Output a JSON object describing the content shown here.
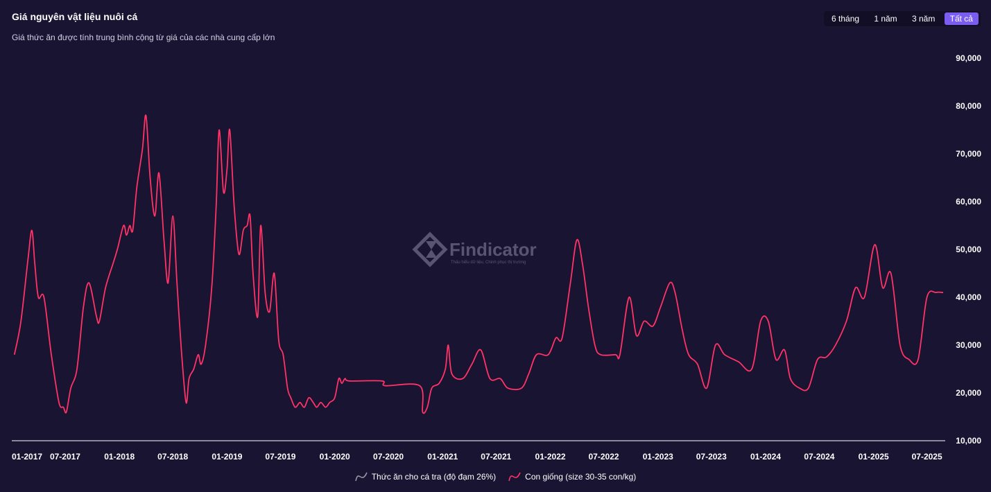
{
  "header": {
    "title": "Giá nguyên vật liệu nuôi cá",
    "subtitle": "Giá thức ăn được tính trung bình cộng từ giá của các nhà cung cấp lớn"
  },
  "range_tabs": [
    {
      "label": "6 tháng",
      "active": false
    },
    {
      "label": "1 năm",
      "active": false
    },
    {
      "label": "3 năm",
      "active": false
    },
    {
      "label": "Tất cả",
      "active": true
    }
  ],
  "watermark": {
    "name": "Findicator",
    "tagline": "Thấu hiểu dữ liệu, Chinh phục thị trường"
  },
  "colors": {
    "background": "#1a1433",
    "series_line": "#ff3366",
    "inactive_legend": "#9a97a8",
    "active_tab": "#7b5cf0"
  },
  "chart_data": {
    "type": "line",
    "title": "Giá nguyên vật liệu nuôi cá",
    "subtitle": "Giá thức ăn được tính trung bình cộng từ giá của các nhà cung cấp lớn",
    "ylim": [
      10000,
      90000
    ],
    "y_ticks": [
      {
        "value": 10000,
        "label": "10,000"
      },
      {
        "value": 20000,
        "label": "20,000"
      },
      {
        "value": 30000,
        "label": "30,000"
      },
      {
        "value": 40000,
        "label": "40,000"
      },
      {
        "value": 50000,
        "label": "50,000"
      },
      {
        "value": 60000,
        "label": "60,000"
      },
      {
        "value": 70000,
        "label": "70,000"
      },
      {
        "value": 80000,
        "label": "80,000"
      },
      {
        "value": 90000,
        "label": "90,000"
      }
    ],
    "x_range": [
      "2017-01",
      "2025-09"
    ],
    "x_ticks": [
      "01-2017",
      "07-2017",
      "01-2018",
      "07-2018",
      "01-2019",
      "07-2019",
      "01-2020",
      "07-2020",
      "01-2021",
      "07-2021",
      "01-2022",
      "07-2022",
      "01-2023",
      "07-2023",
      "01-2024",
      "07-2024",
      "01-2025",
      "07-2025"
    ],
    "legend_position": "bottom",
    "grid": false,
    "series": [
      {
        "name": "Thức ăn cho cá tra (độ đạm 26%)",
        "visible": false,
        "color": "#9a97a8",
        "points": []
      },
      {
        "name": "Con giống (size 30-35 con/kg)",
        "visible": true,
        "color": "#ff3366",
        "points": [
          [
            "2017-01-10",
            28000
          ],
          [
            "2017-02-01",
            35000
          ],
          [
            "2017-02-25",
            48000
          ],
          [
            "2017-03-10",
            54000
          ],
          [
            "2017-03-20",
            47000
          ],
          [
            "2017-04-01",
            40000
          ],
          [
            "2017-04-20",
            40000
          ],
          [
            "2017-05-15",
            28000
          ],
          [
            "2017-06-10",
            18000
          ],
          [
            "2017-06-25",
            17000
          ],
          [
            "2017-07-05",
            16000
          ],
          [
            "2017-07-20",
            21000
          ],
          [
            "2017-08-10",
            25000
          ],
          [
            "2017-09-01",
            38000
          ],
          [
            "2017-09-20",
            43000
          ],
          [
            "2017-10-15",
            36000
          ],
          [
            "2017-10-25",
            35000
          ],
          [
            "2017-11-15",
            42000
          ],
          [
            "2017-12-10",
            47000
          ],
          [
            "2017-12-25",
            50000
          ],
          [
            "2018-01-15",
            55000
          ],
          [
            "2018-01-25",
            53000
          ],
          [
            "2018-02-05",
            55000
          ],
          [
            "2018-02-15",
            54000
          ],
          [
            "2018-03-01",
            63000
          ],
          [
            "2018-03-20",
            71000
          ],
          [
            "2018-04-01",
            78000
          ],
          [
            "2018-04-15",
            65000
          ],
          [
            "2018-05-01",
            57000
          ],
          [
            "2018-05-15",
            66000
          ],
          [
            "2018-06-01",
            52000
          ],
          [
            "2018-06-15",
            43000
          ],
          [
            "2018-07-01",
            57000
          ],
          [
            "2018-07-15",
            43000
          ],
          [
            "2018-07-30",
            29000
          ],
          [
            "2018-08-15",
            18000
          ],
          [
            "2018-08-25",
            23000
          ],
          [
            "2018-09-10",
            25000
          ],
          [
            "2018-09-25",
            28000
          ],
          [
            "2018-10-05",
            26000
          ],
          [
            "2018-10-20",
            30000
          ],
          [
            "2018-11-10",
            42000
          ],
          [
            "2018-11-25",
            59000
          ],
          [
            "2018-12-05",
            75000
          ],
          [
            "2018-12-20",
            62000
          ],
          [
            "2019-01-01",
            67000
          ],
          [
            "2019-01-10",
            75000
          ],
          [
            "2019-01-25",
            59000
          ],
          [
            "2019-02-10",
            49000
          ],
          [
            "2019-02-25",
            54000
          ],
          [
            "2019-03-10",
            55000
          ],
          [
            "2019-03-20",
            57000
          ],
          [
            "2019-03-30",
            45000
          ],
          [
            "2019-04-15",
            36000
          ],
          [
            "2019-04-25",
            55000
          ],
          [
            "2019-05-10",
            41000
          ],
          [
            "2019-05-25",
            37000
          ],
          [
            "2019-06-10",
            45000
          ],
          [
            "2019-06-25",
            31000
          ],
          [
            "2019-07-10",
            28000
          ],
          [
            "2019-07-25",
            21000
          ],
          [
            "2019-08-05",
            19000
          ],
          [
            "2019-08-20",
            17000
          ],
          [
            "2019-09-05",
            18000
          ],
          [
            "2019-09-20",
            17000
          ],
          [
            "2019-10-05",
            19000
          ],
          [
            "2019-10-20",
            18000
          ],
          [
            "2019-11-01",
            17000
          ],
          [
            "2019-11-15",
            18000
          ],
          [
            "2019-12-01",
            17000
          ],
          [
            "2019-12-15",
            18000
          ],
          [
            "2020-01-01",
            19000
          ],
          [
            "2020-01-15",
            23000
          ],
          [
            "2020-01-25",
            22000
          ],
          [
            "2020-02-05",
            23000
          ],
          [
            "2020-02-20",
            22500
          ],
          [
            "2020-06-10",
            22500
          ],
          [
            "2020-06-20",
            21500
          ],
          [
            "2020-10-15",
            21500
          ],
          [
            "2020-10-25",
            16000
          ],
          [
            "2020-11-10",
            17000
          ],
          [
            "2020-11-25",
            21000
          ],
          [
            "2020-12-20",
            22000
          ],
          [
            "2021-01-10",
            25000
          ],
          [
            "2021-01-20",
            30000
          ],
          [
            "2021-02-01",
            24000
          ],
          [
            "2021-03-10",
            23000
          ],
          [
            "2021-04-10",
            26000
          ],
          [
            "2021-05-10",
            29000
          ],
          [
            "2021-06-10",
            23000
          ],
          [
            "2021-07-15",
            23000
          ],
          [
            "2021-08-10",
            21000
          ],
          [
            "2021-09-25",
            21000
          ],
          [
            "2021-10-20",
            24000
          ],
          [
            "2021-11-15",
            28000
          ],
          [
            "2021-12-25",
            28000
          ],
          [
            "2022-01-20",
            31500
          ],
          [
            "2022-02-10",
            31500
          ],
          [
            "2022-03-10",
            43000
          ],
          [
            "2022-04-01",
            52000
          ],
          [
            "2022-04-20",
            47000
          ],
          [
            "2022-05-10",
            38000
          ],
          [
            "2022-06-01",
            30000
          ],
          [
            "2022-06-20",
            28000
          ],
          [
            "2022-08-10",
            28000
          ],
          [
            "2022-08-25",
            28000
          ],
          [
            "2022-09-25",
            40000
          ],
          [
            "2022-10-20",
            32000
          ],
          [
            "2022-11-15",
            35000
          ],
          [
            "2022-12-15",
            34000
          ],
          [
            "2023-01-10",
            38000
          ],
          [
            "2023-02-10",
            43000
          ],
          [
            "2023-02-28",
            41000
          ],
          [
            "2023-03-25",
            33000
          ],
          [
            "2023-04-15",
            28000
          ],
          [
            "2023-05-15",
            26000
          ],
          [
            "2023-06-15",
            21000
          ],
          [
            "2023-07-15",
            30000
          ],
          [
            "2023-08-15",
            28000
          ],
          [
            "2023-10-01",
            26500
          ],
          [
            "2023-11-15",
            25000
          ],
          [
            "2023-12-15",
            35000
          ],
          [
            "2024-01-10",
            35000
          ],
          [
            "2024-02-05",
            27000
          ],
          [
            "2024-03-05",
            29000
          ],
          [
            "2024-03-25",
            23000
          ],
          [
            "2024-04-25",
            21000
          ],
          [
            "2024-05-25",
            21000
          ],
          [
            "2024-06-25",
            27000
          ],
          [
            "2024-07-25",
            27500
          ],
          [
            "2024-08-25",
            30000
          ],
          [
            "2024-10-01",
            35000
          ],
          [
            "2024-11-01",
            42000
          ],
          [
            "2024-12-01",
            40000
          ],
          [
            "2025-01-05",
            51000
          ],
          [
            "2025-02-01",
            42000
          ],
          [
            "2025-03-01",
            45000
          ],
          [
            "2025-04-01",
            30000
          ],
          [
            "2025-05-01",
            27000
          ],
          [
            "2025-06-01",
            27000
          ],
          [
            "2025-07-01",
            40000
          ],
          [
            "2025-08-01",
            41000
          ],
          [
            "2025-08-25",
            41000
          ]
        ]
      }
    ]
  }
}
